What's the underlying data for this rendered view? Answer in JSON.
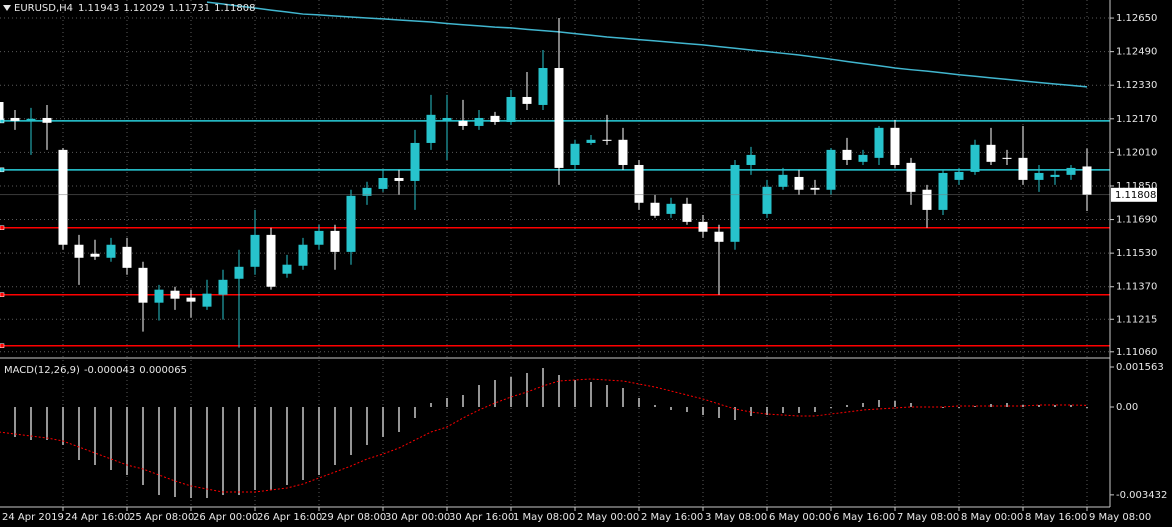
{
  "chart_data": [
    {
      "type": "candlestick",
      "symbol": "EURUSD,H4",
      "categories": [
        "24 Apr 2019",
        null,
        null,
        null,
        "24 Apr 16:00",
        null,
        null,
        null,
        "25 Apr 08:00",
        null,
        null,
        null,
        "26 Apr 00:00",
        null,
        null,
        null,
        "26 Apr 16:00",
        null,
        null,
        null,
        "29 Apr 08:00",
        null,
        null,
        null,
        "30 Apr 00:00",
        null,
        null,
        null,
        "30 Apr 16:00",
        null,
        null,
        null,
        "1 May 08:00",
        null,
        null,
        null,
        "2 May 00:00",
        null,
        null,
        null,
        "2 May 16:00",
        null,
        null,
        null,
        "3 May 08:00",
        null,
        null,
        null,
        "6 May 00:00",
        null,
        null,
        null,
        "6 May 16:00",
        null,
        null,
        null,
        "7 May 08:00",
        null,
        null,
        null,
        "8 May 00:00",
        null,
        null,
        null,
        "8 May 16:00",
        null,
        null,
        null,
        "9 May 08:00"
      ],
      "open": [
        1.1225,
        1.12174,
        1.1216,
        1.12174,
        1.12022,
        1.1157,
        1.11527,
        1.11508,
        1.1156,
        1.1146,
        1.11294,
        1.11351,
        1.11318,
        1.11275,
        1.11332,
        1.11408,
        1.11465,
        1.11617,
        1.11432,
        1.1147,
        1.1157,
        1.11636,
        1.11536,
        1.11803,
        1.11836,
        1.11888,
        1.11874,
        1.12055,
        1.1216,
        1.1216,
        1.12136,
        1.12184,
        1.12155,
        1.12274,
        1.12236,
        1.12412,
        1.1195,
        1.12055,
        1.1207,
        1.1207,
        1.1195,
        1.1177,
        1.11717,
        1.11765,
        1.11679,
        1.11632,
        1.11584,
        1.1195,
        1.11717,
        1.11846,
        1.11893,
        1.11841,
        1.11832,
        1.12022,
        1.11965,
        1.11984,
        1.12127,
        1.1196,
        1.11832,
        1.11736,
        1.11879,
        1.11917,
        1.12046,
        1.11984,
        1.11984,
        1.11879,
        1.11893,
        1.11903,
        1.11943
      ],
      "high": [
        1.1226,
        1.12212,
        1.12222,
        1.12236,
        1.12031,
        1.11617,
        1.11594,
        1.11603,
        1.11603,
        1.11489,
        1.11379,
        1.1137,
        1.11356,
        1.11403,
        1.11451,
        1.11546,
        1.11736,
        1.11651,
        1.11522,
        1.11603,
        1.11665,
        1.11665,
        1.11832,
        1.1187,
        1.11927,
        1.11927,
        1.12117,
        1.12284,
        1.12284,
        1.1226,
        1.12212,
        1.12203,
        1.12308,
        1.12393,
        1.12498,
        1.1265,
        1.1207,
        1.12093,
        1.12189,
        1.12127,
        1.11974,
        1.11808,
        1.11794,
        1.11794,
        1.11712,
        1.11665,
        1.11974,
        1.12036,
        1.11879,
        1.11936,
        1.11927,
        1.11879,
        1.12031,
        1.12079,
        1.12022,
        1.12136,
        1.12165,
        1.11984,
        1.11855,
        1.11927,
        1.11936,
        1.1207,
        1.12127,
        1.12022,
        1.12136,
        1.1195,
        1.11927,
        1.1195,
        1.12029
      ],
      "low": [
        1.12141,
        1.12117,
        1.11998,
        1.12022,
        1.11546,
        1.11379,
        1.11498,
        1.11489,
        1.11427,
        1.11156,
        1.11209,
        1.1126,
        1.11222,
        1.1126,
        1.11213,
        1.1108,
        1.11427,
        1.11356,
        1.11413,
        1.11451,
        1.11546,
        1.11451,
        1.11475,
        1.1176,
        1.11822,
        1.11808,
        1.11736,
        1.12022,
        1.11974,
        1.12117,
        1.12117,
        1.12141,
        1.12141,
        1.12212,
        1.12212,
        1.11855,
        1.11927,
        1.12046,
        1.12046,
        1.11927,
        1.11736,
        1.11698,
        1.11698,
        1.11665,
        1.11603,
        1.11332,
        1.11546,
        1.11903,
        1.11698,
        1.11832,
        1.11808,
        1.11808,
        1.11808,
        1.1195,
        1.1195,
        1.1195,
        1.11936,
        1.1176,
        1.11651,
        1.11712,
        1.11855,
        1.11903,
        1.1195,
        1.1195,
        1.11855,
        1.11822,
        1.11855,
        1.11879,
        1.11731
      ],
      "close": [
        1.12165,
        1.1216,
        1.1217,
        1.12151,
        1.1157,
        1.11508,
        1.11513,
        1.1157,
        1.1146,
        1.11294,
        1.11356,
        1.11313,
        1.11299,
        1.11337,
        1.11403,
        1.11465,
        1.11617,
        1.1137,
        1.11475,
        1.1157,
        1.11636,
        1.11536,
        1.11803,
        1.11841,
        1.11888,
        1.11874,
        1.12055,
        1.12189,
        1.12174,
        1.12136,
        1.12174,
        1.12155,
        1.12274,
        1.12241,
        1.12412,
        1.11936,
        1.12051,
        1.1207,
        1.12065,
        1.1195,
        1.1177,
        1.11708,
        1.11765,
        1.11679,
        1.11632,
        1.11584,
        1.1195,
        1.11998,
        1.11846,
        1.11903,
        1.11832,
        1.11832,
        1.12022,
        1.11974,
        1.11998,
        1.12127,
        1.1195,
        1.11822,
        1.11736,
        1.11912,
        1.11917,
        1.12046,
        1.11965,
        1.11979,
        1.11879,
        1.11912,
        1.11903,
        1.11936,
        1.11808
      ],
      "up_color": "#27c3cc",
      "down_color": "#ffffff",
      "series": [
        {
          "type": "line",
          "color": "#41b6cf",
          "values": [
            null,
            null,
            null,
            null,
            null,
            null,
            null,
            null,
            null,
            null,
            null,
            null,
            null,
            1.12726,
            1.12717,
            1.12707,
            1.12698,
            1.12688,
            1.12679,
            1.12669,
            1.12665,
            1.1266,
            1.12655,
            1.1265,
            1.12646,
            1.12641,
            1.12636,
            1.12631,
            1.12624,
            1.12618,
            1.12613,
            1.12607,
            1.12603,
            1.12596,
            1.1259,
            1.12584,
            1.12576,
            1.12568,
            1.1256,
            1.12554,
            1.12547,
            1.12541,
            1.12535,
            1.12528,
            1.12522,
            1.12514,
            1.12506,
            1.12498,
            1.1249,
            1.12482,
            1.12474,
            1.12464,
            1.12454,
            1.12443,
            1.12433,
            1.12423,
            1.12412,
            1.12404,
            1.12397,
            1.12389,
            1.1238,
            1.12373,
            1.12365,
            1.12358,
            1.1235,
            1.12343,
            1.12336,
            1.12329,
            1.12322
          ]
        }
      ],
      "levels": [
        {
          "value": 1.1216,
          "color": "#2ad0dc"
        },
        {
          "value": 1.11927,
          "color": "#2ad0dc"
        },
        {
          "value": 1.11651,
          "color": "#ff0000"
        },
        {
          "value": 1.11332,
          "color": "#ff0000"
        },
        {
          "value": 1.11089,
          "color": "#ff0000"
        }
      ],
      "ylim": [
        1.1104,
        1.12736
      ],
      "yticks": [
        {
          "value": 1.1265,
          "label": "1.12650"
        },
        {
          "value": 1.1249,
          "label": "1.12490"
        },
        {
          "value": 1.1233,
          "label": "1.12330"
        },
        {
          "value": 1.1217,
          "label": "1.12170"
        },
        {
          "value": 1.1201,
          "label": "1.12010"
        },
        {
          "value": 1.1185,
          "label": "1.11850"
        },
        {
          "value": 1.1169,
          "label": "1.11690"
        },
        {
          "value": 1.1153,
          "label": "1.11530"
        },
        {
          "value": 1.1137,
          "label": "1.11370"
        },
        1.11215,
        {
          "value": 1.1106,
          "label": "1.11060"
        }
      ],
      "grid": true
    },
    {
      "type": "macd",
      "label": "MACD(12,26,9)",
      "series": [
        {
          "type": "bar",
          "color": "#c8c8c8",
          "values": [
            -0.001094,
            -0.001172,
            -0.001289,
            -0.001289,
            -0.001484,
            -0.00207,
            -0.002266,
            -0.002461,
            -0.002656,
            -0.003047,
            -0.003438,
            -0.003516,
            -0.003555,
            -0.003555,
            -0.003438,
            -0.003438,
            -0.003242,
            -0.003242,
            -0.003047,
            -0.002852,
            -0.002656,
            -0.002266,
            -0.001875,
            -0.001484,
            -0.001172,
            -0.000977,
            -0.00043,
            0.000156,
            0.000352,
            0.000469,
            0.000859,
            0.001055,
            0.001172,
            0.001328,
            0.001523,
            0.00125,
            0.001055,
            0.000977,
            0.000859,
            0.000742,
            0.000352,
            7.8e-05,
            -0.000117,
            -0.000195,
            -0.000313,
            -0.00043,
            -0.000508,
            -0.000352,
            -0.000313,
            -0.000234,
            -0.000234,
            -0.000195,
            -3.9e-05,
            7.8e-05,
            0.000156,
            0.000273,
            0.000234,
            0.000156,
            0,
            -3.9e-05,
            -3.9e-05,
            3.9e-05,
            0.000117,
            0.000156,
            7.8e-05,
            7.8e-05,
            7.8e-05,
            7.8e-05,
            -4.3e-05
          ]
        },
        {
          "type": "line",
          "color": "#ff0000",
          "values": [
            -0.000977,
            -0.001055,
            -0.001133,
            -0.001211,
            -0.001328,
            -0.001563,
            -0.001797,
            -0.002031,
            -0.002266,
            -0.002422,
            -0.002656,
            -0.002891,
            -0.003086,
            -0.003203,
            -0.00332,
            -0.00332,
            -0.00332,
            -0.003242,
            -0.003164,
            -0.003008,
            -0.002773,
            -0.002539,
            -0.002305,
            -0.002031,
            -0.001836,
            -0.001602,
            -0.001289,
            -0.000977,
            -0.000781,
            -0.00043,
            -0.000117,
            0.000156,
            0.000391,
            0.000586,
            0.00082,
            0.001016,
            0.001055,
            0.001094,
            0.001055,
            0.001016,
            0.000898,
            0.000781,
            0.000625,
            0.000469,
            0.000313,
            0.000117,
            -7.8e-05,
            -0.000195,
            -0.000273,
            -0.000313,
            -0.000352,
            -0.000352,
            -0.000273,
            -0.000195,
            -0.000117,
            -7.8e-05,
            -3.9e-05,
            0,
            0,
            0,
            3.9e-05,
            3.9e-05,
            3.9e-05,
            3.9e-05,
            3.9e-05,
            7.8e-05,
            7.8e-05,
            7.8e-05,
            6.5e-05
          ]
        }
      ],
      "ylim": [
        -0.003828,
        0.001836
      ],
      "yticks": [
        0.001563,
        {
          "value": 0,
          "label": "0.00"
        },
        -0.003432
      ]
    }
  ]
}
